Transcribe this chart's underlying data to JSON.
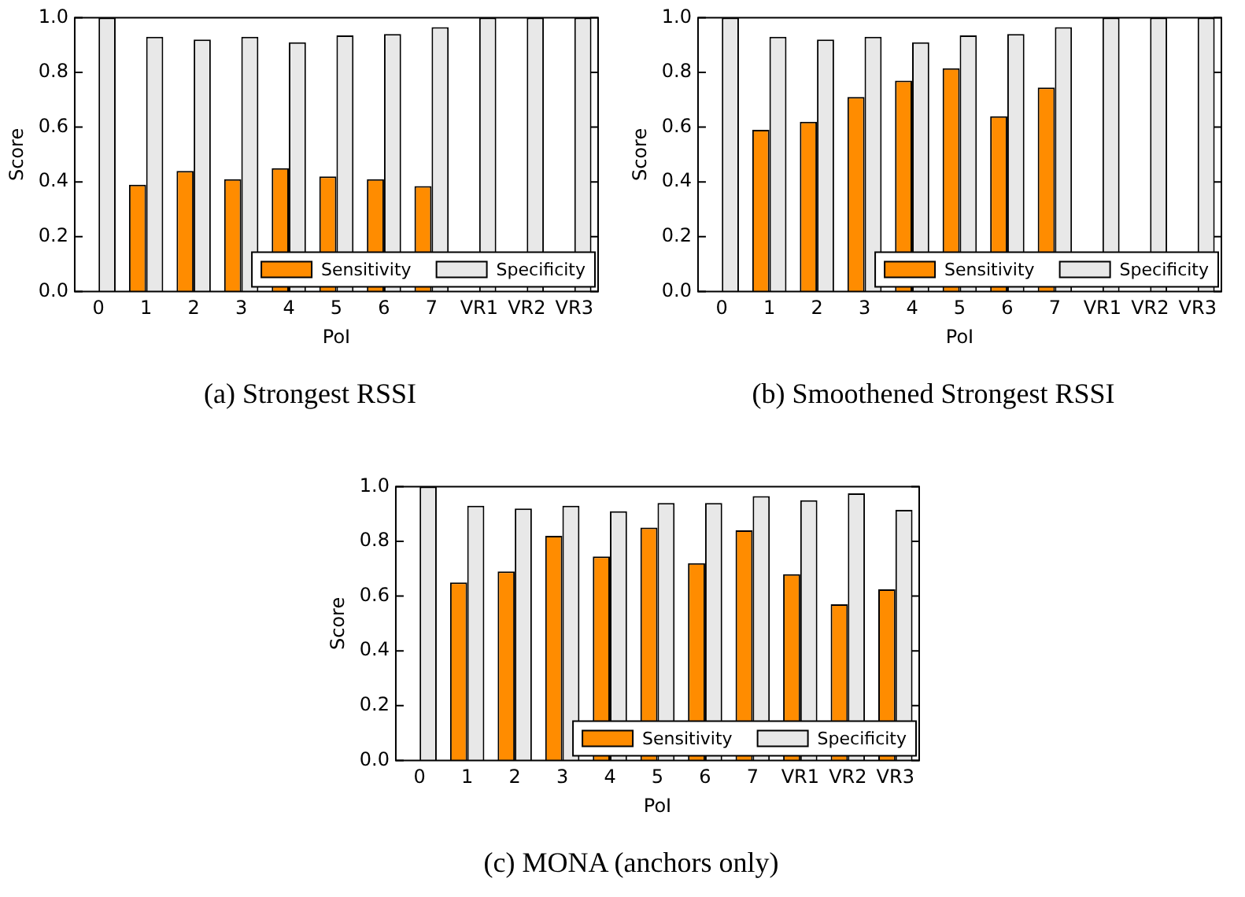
{
  "chart_data": [
    {
      "type": "bar",
      "title": "(a)  Strongest RSSI",
      "xlabel": "PoI",
      "ylabel": "Score",
      "categories": [
        "0",
        "1",
        "2",
        "3",
        "4",
        "5",
        "6",
        "7",
        "VR1",
        "VR2",
        "VR3"
      ],
      "ylim": [
        0,
        1
      ],
      "yticks": [
        {
          "value": 0,
          "label": "0.0"
        },
        {
          "value": 0.2,
          "label": "0.2"
        },
        {
          "value": 0.4,
          "label": "0.4"
        },
        {
          "value": 0.6,
          "label": "0.6"
        },
        {
          "value": 0.8,
          "label": "0.8"
        },
        {
          "value": 1,
          "label": "1.0"
        }
      ],
      "grid": false,
      "legend": "bottom right",
      "series": [
        {
          "name": "Sensitivity",
          "color": "#ff8c00",
          "values": [
            null,
            0.39,
            0.44,
            0.41,
            0.45,
            0.42,
            0.41,
            0.385,
            null,
            null,
            null
          ]
        },
        {
          "name": "Specificity",
          "color": "#e8e8e8",
          "values": [
            1,
            0.93,
            0.92,
            0.93,
            0.91,
            0.935,
            0.94,
            0.965,
            1,
            1,
            1
          ]
        }
      ]
    },
    {
      "type": "bar",
      "title": "(b)  Smoothened Strongest RSSI",
      "xlabel": "PoI",
      "ylabel": "Score",
      "categories": [
        "0",
        "1",
        "2",
        "3",
        "4",
        "5",
        "6",
        "7",
        "VR1",
        "VR2",
        "VR3"
      ],
      "ylim": [
        0,
        1
      ],
      "yticks": [
        {
          "value": 0,
          "label": "0.0"
        },
        {
          "value": 0.2,
          "label": "0.2"
        },
        {
          "value": 0.4,
          "label": "0.4"
        },
        {
          "value": 0.6,
          "label": "0.6"
        },
        {
          "value": 0.8,
          "label": "0.8"
        },
        {
          "value": 1,
          "label": "1.0"
        }
      ],
      "grid": false,
      "legend": "bottom right",
      "series": [
        {
          "name": "Sensitivity",
          "color": "#ff8c00",
          "values": [
            null,
            0.59,
            0.62,
            0.71,
            0.77,
            0.815,
            0.64,
            0.745,
            null,
            null,
            null
          ]
        },
        {
          "name": "Specificity",
          "color": "#e8e8e8",
          "values": [
            1,
            0.93,
            0.92,
            0.93,
            0.91,
            0.935,
            0.94,
            0.965,
            1,
            1,
            1
          ]
        }
      ]
    },
    {
      "type": "bar",
      "title": "(c)  MONA (anchors only)",
      "xlabel": "PoI",
      "ylabel": "Score",
      "categories": [
        "0",
        "1",
        "2",
        "3",
        "4",
        "5",
        "6",
        "7",
        "VR1",
        "VR2",
        "VR3"
      ],
      "ylim": [
        0,
        1
      ],
      "yticks": [
        {
          "value": 0,
          "label": "0.0"
        },
        {
          "value": 0.2,
          "label": "0.2"
        },
        {
          "value": 0.4,
          "label": "0.4"
        },
        {
          "value": 0.6,
          "label": "0.6"
        },
        {
          "value": 0.8,
          "label": "0.8"
        },
        {
          "value": 1,
          "label": "1.0"
        }
      ],
      "grid": false,
      "legend": "bottom right",
      "series": [
        {
          "name": "Sensitivity",
          "color": "#ff8c00",
          "values": [
            null,
            0.65,
            0.69,
            0.82,
            0.745,
            0.85,
            0.72,
            0.84,
            0.68,
            0.57,
            0.625
          ]
        },
        {
          "name": "Specificity",
          "color": "#e8e8e8",
          "values": [
            1,
            0.93,
            0.92,
            0.93,
            0.91,
            0.94,
            0.94,
            0.965,
            0.95,
            0.975,
            0.915
          ]
        }
      ]
    }
  ]
}
